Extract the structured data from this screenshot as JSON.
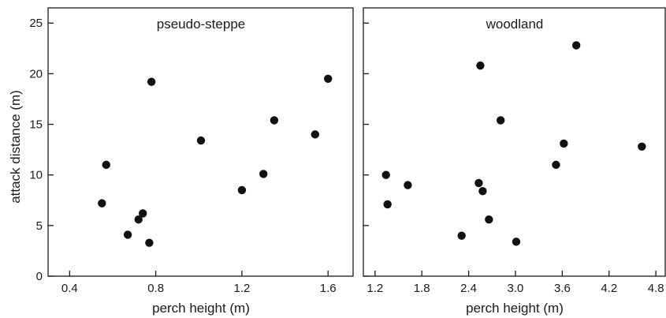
{
  "figure": {
    "ylabel": "attack distance (m)",
    "marker_color": "#111111",
    "axis_color": "#1a1a1a"
  },
  "chart_data": [
    {
      "type": "scatter",
      "title": "pseudo-steppe",
      "xlabel": "perch height (m)",
      "ylabel": "attack distance (m)",
      "xlim": [
        0.3,
        1.72
      ],
      "ylim": [
        0,
        26.5
      ],
      "x_ticks": [
        0.4,
        0.8,
        1.2,
        1.6
      ],
      "x_tick_labels": [
        "0.4",
        "0.8",
        "1.2",
        "1.6"
      ],
      "y_ticks": [
        0,
        5,
        10,
        15,
        20,
        25
      ],
      "y_tick_labels": [
        "0",
        "5",
        "10",
        "15",
        "20",
        "25"
      ],
      "grid": false,
      "points": [
        {
          "x": 0.55,
          "y": 7.2
        },
        {
          "x": 0.57,
          "y": 11.0
        },
        {
          "x": 0.67,
          "y": 4.1
        },
        {
          "x": 0.72,
          "y": 5.6
        },
        {
          "x": 0.74,
          "y": 6.2
        },
        {
          "x": 0.77,
          "y": 3.3
        },
        {
          "x": 0.78,
          "y": 19.2
        },
        {
          "x": 1.01,
          "y": 13.4
        },
        {
          "x": 1.2,
          "y": 8.5
        },
        {
          "x": 1.3,
          "y": 10.1
        },
        {
          "x": 1.35,
          "y": 15.4
        },
        {
          "x": 1.54,
          "y": 14.0
        },
        {
          "x": 1.6,
          "y": 19.5
        }
      ]
    },
    {
      "type": "scatter",
      "title": "woodland",
      "xlabel": "perch height (m)",
      "ylabel": "",
      "xlim": [
        1.05,
        4.93
      ],
      "ylim": [
        0,
        26.5
      ],
      "x_ticks": [
        1.2,
        1.8,
        2.4,
        3.0,
        3.6,
        4.2,
        4.8
      ],
      "x_tick_labels": [
        "1.2",
        "1.8",
        "2.4",
        "3.0",
        "3.6",
        "4.2",
        "4.8"
      ],
      "y_ticks": [
        0,
        5,
        10,
        15,
        20,
        25
      ],
      "y_tick_labels": [
        "",
        "",
        "",
        "",
        "",
        ""
      ],
      "grid": false,
      "points": [
        {
          "x": 1.34,
          "y": 10.0
        },
        {
          "x": 1.36,
          "y": 7.1
        },
        {
          "x": 1.62,
          "y": 9.0
        },
        {
          "x": 2.31,
          "y": 4.0
        },
        {
          "x": 2.53,
          "y": 9.2
        },
        {
          "x": 2.55,
          "y": 20.8
        },
        {
          "x": 2.58,
          "y": 8.4
        },
        {
          "x": 2.66,
          "y": 5.6
        },
        {
          "x": 2.81,
          "y": 15.4
        },
        {
          "x": 3.01,
          "y": 3.4
        },
        {
          "x": 3.52,
          "y": 11.0
        },
        {
          "x": 3.62,
          "y": 13.1
        },
        {
          "x": 3.78,
          "y": 22.8
        },
        {
          "x": 4.62,
          "y": 12.8
        }
      ]
    }
  ]
}
